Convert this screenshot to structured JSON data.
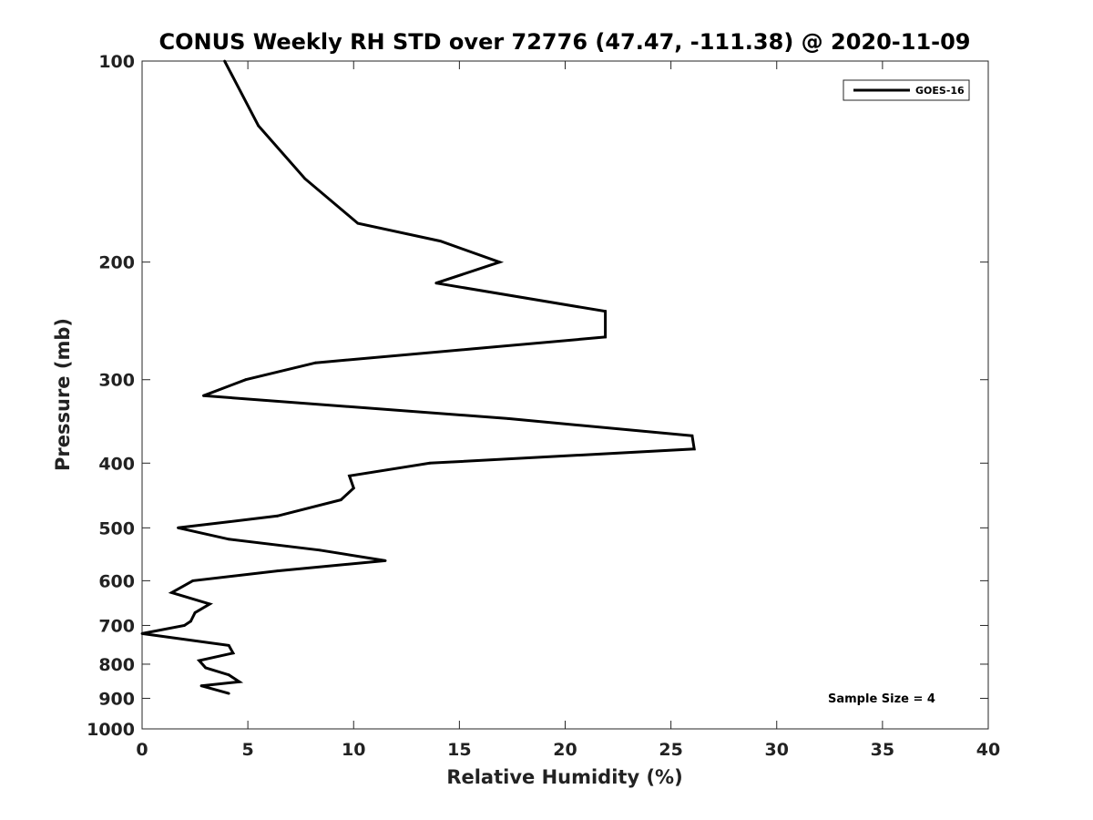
{
  "chart_data": {
    "type": "line",
    "title": "CONUS Weekly RH STD over 72776 (47.47, -111.38) @ 2020-11-09",
    "xlabel": "Relative Humidity (%)",
    "ylabel": "Pressure (mb)",
    "xlim": [
      0,
      40
    ],
    "ylim": [
      100,
      1000
    ],
    "y_scale": "log",
    "y_reversed": true,
    "grid": false,
    "legend_position": "top-right",
    "x_ticks": [
      "0",
      "5",
      "10",
      "15",
      "20",
      "25",
      "30",
      "35",
      "40"
    ],
    "y_ticks": [
      "100",
      "200",
      "300",
      "400",
      "500",
      "600",
      "700",
      "800",
      "900",
      "1000"
    ],
    "annotation": "Sample Size = 4",
    "series": [
      {
        "name": "GOES-16",
        "color": "#000000",
        "points": [
          {
            "x": 3.9,
            "y": 100
          },
          {
            "x": 5.5,
            "y": 125
          },
          {
            "x": 7.7,
            "y": 150
          },
          {
            "x": 10.2,
            "y": 175
          },
          {
            "x": 14.1,
            "y": 186
          },
          {
            "x": 16.9,
            "y": 200
          },
          {
            "x": 13.9,
            "y": 215
          },
          {
            "x": 21.9,
            "y": 237
          },
          {
            "x": 21.9,
            "y": 259
          },
          {
            "x": 8.2,
            "y": 283
          },
          {
            "x": 4.9,
            "y": 300
          },
          {
            "x": 2.9,
            "y": 317
          },
          {
            "x": 17.3,
            "y": 343
          },
          {
            "x": 26.0,
            "y": 364
          },
          {
            "x": 26.1,
            "y": 381
          },
          {
            "x": 13.6,
            "y": 400
          },
          {
            "x": 9.8,
            "y": 418
          },
          {
            "x": 10.0,
            "y": 436
          },
          {
            "x": 9.4,
            "y": 454
          },
          {
            "x": 6.4,
            "y": 480
          },
          {
            "x": 1.7,
            "y": 500
          },
          {
            "x": 4.1,
            "y": 520
          },
          {
            "x": 8.4,
            "y": 540
          },
          {
            "x": 11.5,
            "y": 560
          },
          {
            "x": 6.4,
            "y": 580
          },
          {
            "x": 2.4,
            "y": 600
          },
          {
            "x": 1.4,
            "y": 625
          },
          {
            "x": 3.2,
            "y": 650
          },
          {
            "x": 2.5,
            "y": 670
          },
          {
            "x": 2.3,
            "y": 690
          },
          {
            "x": 2.0,
            "y": 700
          },
          {
            "x": 0.0,
            "y": 720
          },
          {
            "x": 4.1,
            "y": 750
          },
          {
            "x": 4.3,
            "y": 770
          },
          {
            "x": 2.7,
            "y": 790
          },
          {
            "x": 3.0,
            "y": 810
          },
          {
            "x": 4.1,
            "y": 830
          },
          {
            "x": 4.6,
            "y": 850
          },
          {
            "x": 2.8,
            "y": 862
          },
          {
            "x": 4.1,
            "y": 885
          }
        ]
      }
    ]
  }
}
